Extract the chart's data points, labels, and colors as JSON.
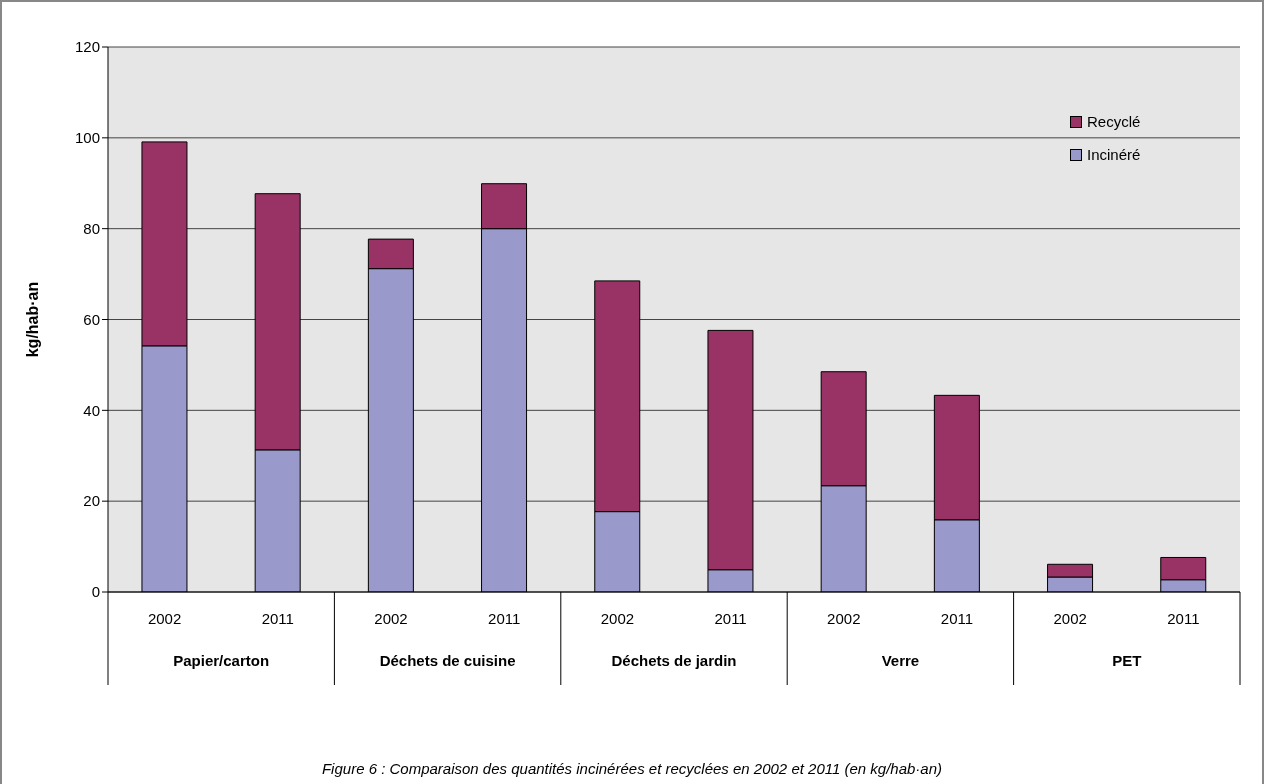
{
  "chart_data": {
    "type": "bar",
    "stacked": true,
    "categories": [
      "2002",
      "2011",
      "2002",
      "2011",
      "2002",
      "2011",
      "2002",
      "2011",
      "2002",
      "2011"
    ],
    "series": [
      {
        "name": "Incinéré",
        "color": "#9999cc",
        "values": [
          54.2,
          31.3,
          71.2,
          80,
          17.7,
          4.9,
          23.4,
          15.9,
          3.3,
          2.7
        ]
      },
      {
        "name": "Recyclé",
        "color": "#993366",
        "values": [
          44.9,
          56.4,
          6.5,
          9.9,
          50.8,
          52.7,
          25.1,
          27.4,
          2.8,
          4.9
        ]
      }
    ],
    "ylabel": "kg/hab·an",
    "ylim": [
      0,
      120
    ],
    "yticks": [
      0,
      20,
      40,
      60,
      80,
      100,
      120
    ],
    "grid": "y",
    "legend": "top right",
    "annotations": [
      "Papier/carton",
      "Déchets de cuisine",
      "Déchets de jardin",
      "Verre",
      "PET",
      "Figure 6 : Comparaison des quantités incinérées et recyclées en 2002 et 2011 (en kg/hab·an)"
    ]
  }
}
